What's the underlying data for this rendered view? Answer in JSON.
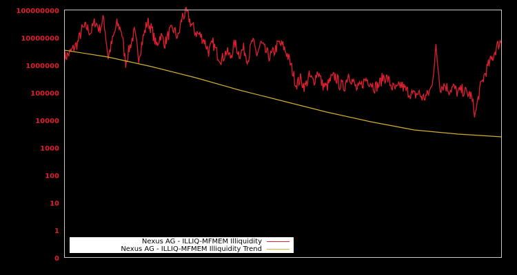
{
  "chart_data": {
    "type": "line",
    "title": "",
    "xlabel": "",
    "ylabel": "",
    "yscale": "log",
    "y_tick_labels": [
      "100000000",
      "10000000",
      "1000000",
      "100000",
      "10000",
      "1000",
      "100",
      "10",
      "1",
      "0"
    ],
    "ylim": [
      0,
      100000000
    ],
    "grid": false,
    "legend_position": "lower left",
    "colors": {
      "series": "#dd2030",
      "trend": "#d4b030",
      "axis_frame": "#cccccc",
      "tick_text": "#dd2030",
      "background": "#000000"
    },
    "series": [
      {
        "name": "Nexus AG - ILLIQ-MFMEM Illiquidity",
        "note": "log10 values sampled across x from 0 to 1 (plot width)",
        "x": [
          0.0,
          0.01,
          0.02,
          0.03,
          0.04,
          0.05,
          0.06,
          0.07,
          0.08,
          0.09,
          0.1,
          0.11,
          0.12,
          0.13,
          0.14,
          0.15,
          0.16,
          0.17,
          0.18,
          0.19,
          0.2,
          0.21,
          0.22,
          0.23,
          0.24,
          0.25,
          0.26,
          0.27,
          0.28,
          0.29,
          0.3,
          0.31,
          0.32,
          0.33,
          0.34,
          0.35,
          0.36,
          0.37,
          0.38,
          0.39,
          0.4,
          0.41,
          0.42,
          0.43,
          0.44,
          0.45,
          0.46,
          0.47,
          0.48,
          0.49,
          0.5,
          0.51,
          0.52,
          0.53,
          0.54,
          0.55,
          0.56,
          0.57,
          0.58,
          0.59,
          0.6,
          0.61,
          0.62,
          0.63,
          0.64,
          0.65,
          0.66,
          0.67,
          0.68,
          0.69,
          0.7,
          0.71,
          0.72,
          0.73,
          0.74,
          0.75,
          0.76,
          0.77,
          0.78,
          0.79,
          0.8,
          0.81,
          0.82,
          0.83,
          0.84,
          0.85,
          0.86,
          0.87,
          0.88,
          0.89,
          0.9,
          0.91,
          0.92,
          0.93,
          0.94,
          0.95,
          0.96,
          0.97,
          0.98,
          0.99,
          1.0
        ],
        "log10_values": [
          6.3,
          6.4,
          6.6,
          6.8,
          7.3,
          7.4,
          7.2,
          7.6,
          7.3,
          7.7,
          6.3,
          6.9,
          7.5,
          7.3,
          6.1,
          6.7,
          7.2,
          6.3,
          7.0,
          7.6,
          7.3,
          6.7,
          7.1,
          6.8,
          7.2,
          7.3,
          7.0,
          7.8,
          7.9,
          7.5,
          7.2,
          7.1,
          6.9,
          6.5,
          6.8,
          6.4,
          6.2,
          6.5,
          6.3,
          6.8,
          6.4,
          6.6,
          6.2,
          6.9,
          6.4,
          6.8,
          6.5,
          6.3,
          6.5,
          6.8,
          6.7,
          6.4,
          5.9,
          5.3,
          5.5,
          5.2,
          5.6,
          5.4,
          5.8,
          5.3,
          5.2,
          5.5,
          5.6,
          5.3,
          5.2,
          5.7,
          5.4,
          5.1,
          5.3,
          5.5,
          5.4,
          5.2,
          5.3,
          5.6,
          5.5,
          5.2,
          5.1,
          5.3,
          5.1,
          5.0,
          4.9,
          5.0,
          4.8,
          4.9,
          5.2,
          6.6,
          5.2,
          5.3,
          5.1,
          5.2,
          5.0,
          5.1,
          5.0,
          4.9,
          4.2,
          5.1,
          5.6,
          6.0,
          6.3,
          6.7,
          6.9
        ]
      },
      {
        "name": "Nexus AG - ILLIQ-MFMEM Illiquidity Trend",
        "x": [
          0.0,
          0.1,
          0.2,
          0.3,
          0.4,
          0.5,
          0.6,
          0.7,
          0.8,
          0.9,
          1.0
        ],
        "log10_values": [
          6.55,
          6.3,
          5.95,
          5.55,
          5.1,
          4.7,
          4.3,
          3.95,
          3.65,
          3.5,
          3.4
        ]
      }
    ]
  },
  "legend": {
    "items": [
      {
        "label": "Nexus AG - ILLIQ-MFMEM Illiquidity",
        "color": "#dd2030"
      },
      {
        "label": "Nexus AG - ILLIQ-MFMEM Illiquidity Trend",
        "color": "#d4b030"
      }
    ]
  }
}
